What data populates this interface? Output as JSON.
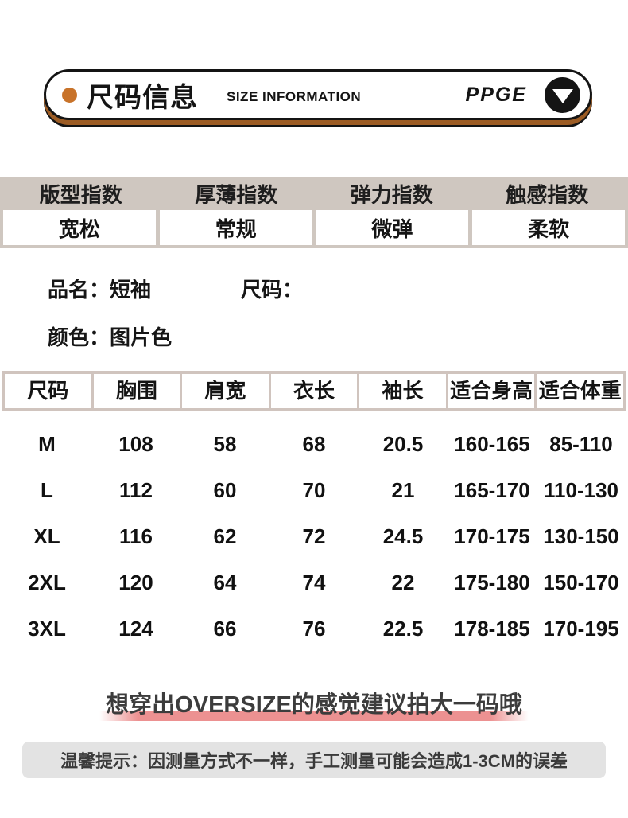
{
  "header": {
    "title_cn": "尺码信息",
    "title_en": "SIZE INFORMATION",
    "brand": "PPGE"
  },
  "index_table": {
    "columns": [
      {
        "label": "版型指数",
        "value": "宽松"
      },
      {
        "label": "厚薄指数",
        "value": "常规"
      },
      {
        "label": "弹力指数",
        "value": "微弹"
      },
      {
        "label": "触感指数",
        "value": "柔软"
      }
    ]
  },
  "product_info": {
    "name_label": "品名：",
    "name_value": "短袖",
    "size_label": "尺码：",
    "size_value": "",
    "color_label": "颜色：",
    "color_value": "图片色"
  },
  "size_chart": {
    "headers": [
      "尺码",
      "胸围",
      "肩宽",
      "衣长",
      "袖长",
      "适合身高",
      "适合体重"
    ],
    "rows": [
      [
        "M",
        "108",
        "58",
        "68",
        "20.5",
        "160-165",
        "85-110"
      ],
      [
        "L",
        "112",
        "60",
        "70",
        "21",
        "165-170",
        "110-130"
      ],
      [
        "XL",
        "116",
        "62",
        "72",
        "24.5",
        "170-175",
        "130-150"
      ],
      [
        "2XL",
        "120",
        "64",
        "74",
        "22",
        "175-180",
        "150-170"
      ],
      [
        "3XL",
        "124",
        "66",
        "76",
        "22.5",
        "178-185",
        "170-195"
      ]
    ]
  },
  "notes": {
    "oversize_tip": "想穿出OVERSIZE的感觉建议拍大一码哦",
    "measurement_tip": "温馨提示：因测量方式不一样，手工测量可能会造成1-3CM的误差"
  },
  "colors": {
    "accent_orange": "#c8732a",
    "pill_shadow_brown": "#9c5c24",
    "strip_beige": "#cfc7c0",
    "table_border_beige": "#d0c4be",
    "pink_highlight": "#ec9191",
    "tip_box_gray": "#e3e3e3"
  }
}
